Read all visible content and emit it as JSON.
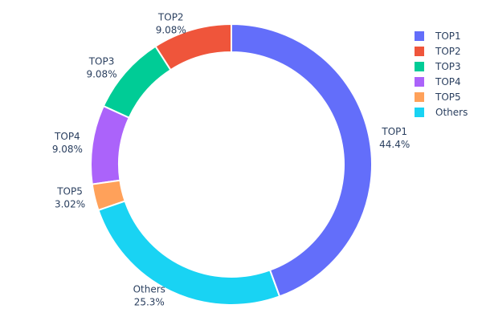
{
  "chart_data": {
    "type": "pie",
    "hole": true,
    "categories": [
      "TOP1",
      "TOP2",
      "TOP3",
      "TOP4",
      "TOP5",
      "Others"
    ],
    "values": [
      44.4,
      9.08,
      9.08,
      9.08,
      3.02,
      25.3
    ],
    "labels_text": [
      "44.4%",
      "9.08%",
      "9.08%",
      "9.08%",
      "3.02%",
      "25.3%"
    ],
    "colors": [
      "#636efa",
      "#ef553b",
      "#00cc96",
      "#ab63fa",
      "#ffa15a",
      "#19d3f3"
    ],
    "legend": {
      "placement": "top-right",
      "entries": [
        "TOP1",
        "TOP2",
        "TOP3",
        "TOP4",
        "TOP5",
        "Others"
      ]
    }
  }
}
